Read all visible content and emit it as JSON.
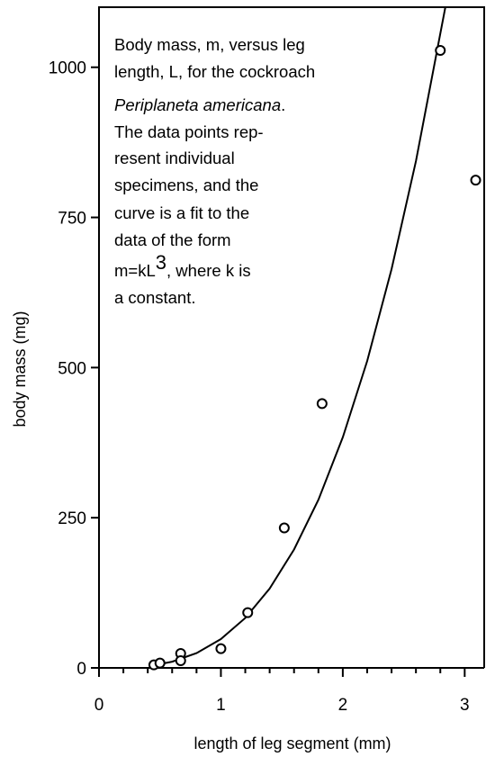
{
  "chart_data": {
    "type": "scatter",
    "x_label": "length of leg segment (mm)",
    "y_label": "body mass (mg)",
    "annotation": [
      "Body mass, m, versus leg",
      "length, L, for the cockroach",
      [
        "Periplaneta americana",
        "."
      ],
      "The data points rep-",
      "resent  individual",
      "specimens, and the",
      "curve is a fit to the",
      "data of the form",
      [
        "m=kL",
        "3",
        ", where k is"
      ],
      "a constant."
    ],
    "x": [
      0.45,
      0.5,
      0.67,
      0.67,
      1.0,
      1.22,
      1.52,
      1.83,
      2.8,
      3.09
    ],
    "values": [
      5,
      8,
      24,
      12,
      32,
      92,
      233,
      440,
      1028,
      812
    ],
    "fit": {
      "x": [
        0.45,
        0.6,
        0.8,
        1.0,
        1.2,
        1.4,
        1.6,
        1.8,
        2.0,
        2.2,
        2.4,
        2.6,
        2.84
      ],
      "values": [
        4.4,
        10.4,
        24.6,
        48,
        83,
        132,
        197,
        280,
        384,
        511,
        664,
        844,
        1099
      ]
    },
    "xlim": [
      0,
      3.16
    ],
    "ylim": [
      0,
      1100
    ],
    "xticks": [
      0,
      1,
      2,
      3
    ],
    "xminorticks": [
      0.2,
      0.4,
      0.6,
      0.8,
      1.2,
      1.4,
      1.6,
      1.8,
      2.2,
      2.4,
      2.6,
      2.8
    ],
    "yticks": [
      0,
      250,
      500,
      750,
      1000
    ]
  }
}
